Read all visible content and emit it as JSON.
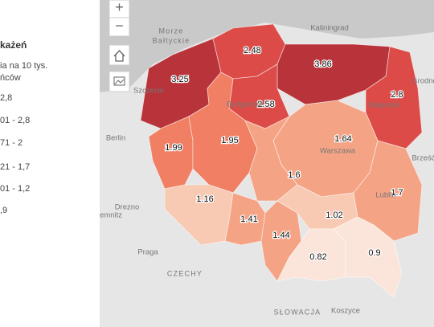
{
  "legend": {
    "title": "każeń",
    "subtitle_lines": [
      "ia na 10 tys.",
      "ńców"
    ],
    "items": [
      {
        "label": "2,8",
        "color": "#b8333a"
      },
      {
        "label": "01 - 2,8",
        "color": "#dc4b47"
      },
      {
        "label": "71 - 2",
        "color": "#f07f64"
      },
      {
        "label": "21 - 1,7",
        "color": "#f5a385"
      },
      {
        "label": "01 - 1,2",
        "color": "#f8c9b3"
      },
      {
        "label": ",9",
        "color": "#fbe5da"
      }
    ]
  },
  "regions": [
    {
      "value": 3.25,
      "color": "#b8333a"
    },
    {
      "value": 2.48,
      "color": "#dc4b47"
    },
    {
      "value": 3.86,
      "color": "#b8333a"
    },
    {
      "value": 2.8,
      "color": "#dc4b47"
    },
    {
      "value": 2.58,
      "color": "#dc4b47"
    },
    {
      "value": 1.99,
      "color": "#f07f64"
    },
    {
      "value": 1.95,
      "color": "#f07f64"
    },
    {
      "value": 1.64,
      "color": "#f5a385"
    },
    {
      "value": 1.6,
      "color": "#f5a385"
    },
    {
      "value": 1.16,
      "color": "#f8c9b3"
    },
    {
      "value": 1.41,
      "color": "#f5a385"
    },
    {
      "value": 1.44,
      "color": "#f5a385"
    },
    {
      "value": 1.02,
      "color": "#f8c9b3"
    },
    {
      "value": 1.7,
      "color": "#f5a385"
    },
    {
      "value": 0.82,
      "color": "#fbe5da"
    },
    {
      "value": 0.9,
      "color": "#fbe5da"
    }
  ],
  "places": [
    "Morze",
    "Bałtyckie",
    "Kaliningrad",
    "Szczecin",
    "Bydgoszcz",
    "Berlin",
    "Warszawa",
    "Białystok",
    "Grodno",
    "Brześć",
    "Lublin",
    "Drezno",
    "Chemnitz",
    "Praga",
    "CZECHY",
    "SŁOWACJA",
    "Koszyce"
  ],
  "controls": [
    "+",
    "−"
  ]
}
